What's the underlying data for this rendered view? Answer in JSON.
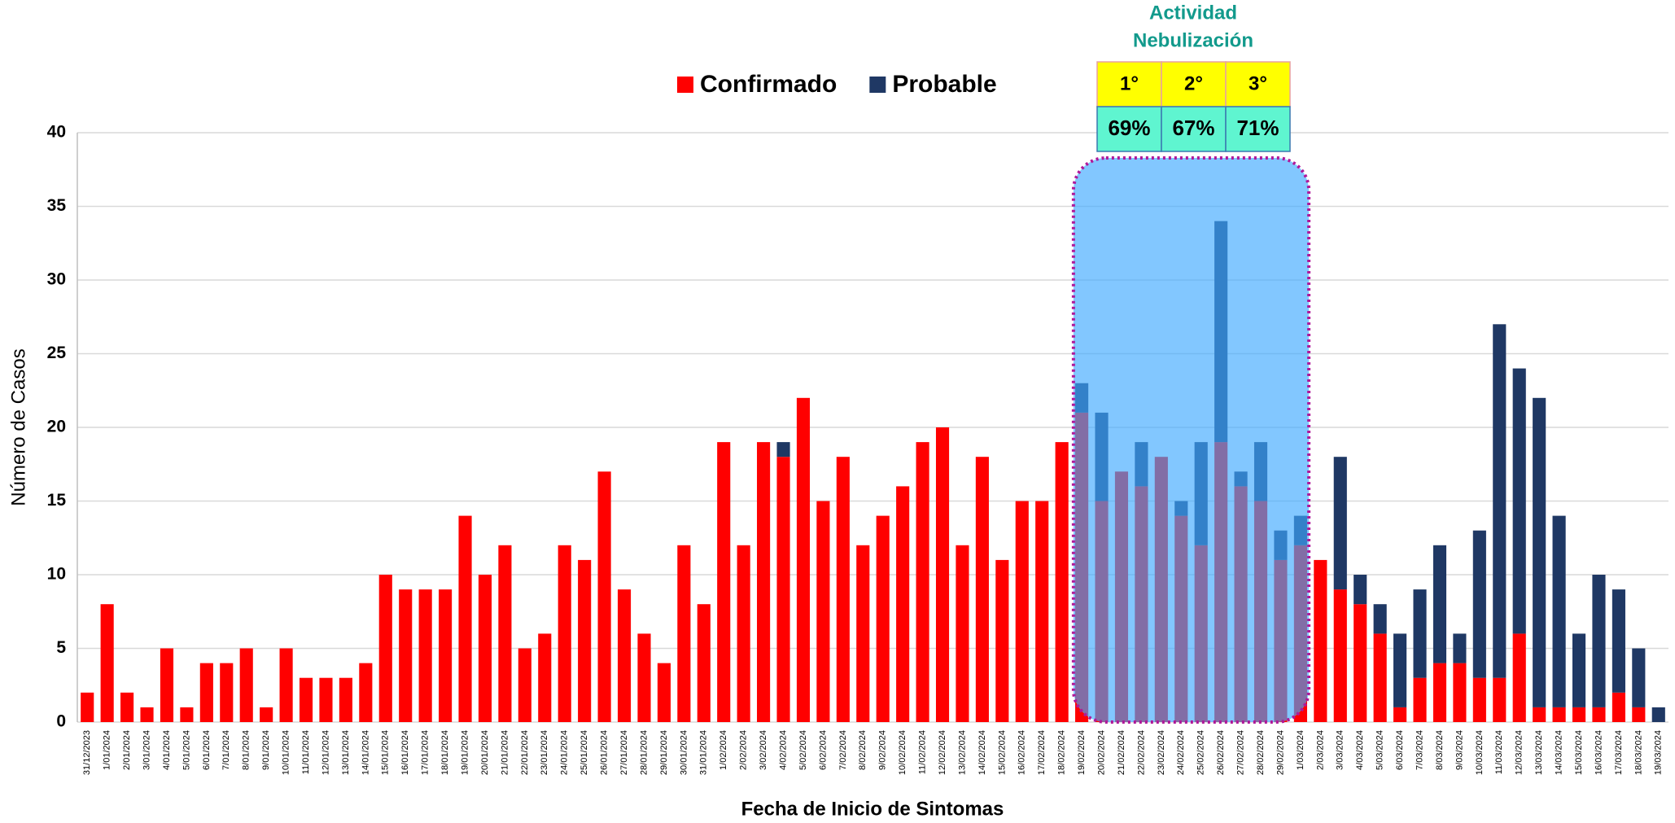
{
  "chart_data": {
    "type": "stacked_bar",
    "x_label": "Fecha de Inicio de Sintomas",
    "y_label": "Número de Casos",
    "categories": [
      "31/12/2023",
      "1/01/2024",
      "2/01/2024",
      "3/01/2024",
      "4/01/2024",
      "5/01/2024",
      "6/01/2024",
      "7/01/2024",
      "8/01/2024",
      "9/01/2024",
      "10/01/2024",
      "11/01/2024",
      "12/01/2024",
      "13/01/2024",
      "14/01/2024",
      "15/01/2024",
      "16/01/2024",
      "17/01/2024",
      "18/01/2024",
      "19/01/2024",
      "20/01/2024",
      "21/01/2024",
      "22/01/2024",
      "23/01/2024",
      "24/01/2024",
      "25/01/2024",
      "26/01/2024",
      "27/01/2024",
      "28/01/2024",
      "29/01/2024",
      "30/01/2024",
      "31/01/2024",
      "1/02/2024",
      "2/02/2024",
      "3/02/2024",
      "4/02/2024",
      "5/02/2024",
      "6/02/2024",
      "7/02/2024",
      "8/02/2024",
      "9/02/2024",
      "10/02/2024",
      "11/02/2024",
      "12/02/2024",
      "13/02/2024",
      "14/02/2024",
      "15/02/2024",
      "16/02/2024",
      "17/02/2024",
      "18/02/2024",
      "19/02/2024",
      "20/02/2024",
      "21/02/2024",
      "22/02/2024",
      "23/02/2024",
      "24/02/2024",
      "25/02/2024",
      "26/02/2024",
      "27/02/2024",
      "28/02/2024",
      "29/02/2024",
      "1/03/2024",
      "2/03/2024",
      "3/03/2024",
      "4/03/2024",
      "5/03/2024",
      "6/03/2024",
      "7/03/2024",
      "8/03/2024",
      "9/03/2024",
      "10/03/2024",
      "11/03/2024",
      "12/03/2024",
      "13/03/2024",
      "14/03/2024",
      "15/03/2024",
      "16/03/2024",
      "17/03/2024",
      "18/03/2024",
      "19/03/2024"
    ],
    "series": [
      {
        "name": "Confirmado",
        "color": "#ff0000",
        "values": [
          2,
          8,
          2,
          1,
          5,
          1,
          4,
          4,
          5,
          1,
          5,
          3,
          3,
          3,
          4,
          10,
          9,
          9,
          9,
          14,
          10,
          12,
          5,
          6,
          12,
          11,
          17,
          9,
          6,
          4,
          12,
          8,
          19,
          12,
          19,
          18,
          22,
          15,
          18,
          12,
          14,
          16,
          19,
          20,
          12,
          18,
          11,
          15,
          15,
          19,
          21,
          15,
          17,
          16,
          18,
          14,
          12,
          19,
          16,
          15,
          11,
          12,
          11,
          9,
          8,
          6,
          1,
          3,
          4,
          4,
          3,
          3,
          6,
          1,
          1,
          1,
          1,
          2,
          1,
          0
        ]
      },
      {
        "name": "Probable",
        "color": "#1f3864",
        "values": [
          0,
          0,
          0,
          0,
          0,
          0,
          0,
          0,
          0,
          0,
          0,
          0,
          0,
          0,
          0,
          0,
          0,
          0,
          0,
          0,
          0,
          0,
          0,
          0,
          0,
          0,
          0,
          0,
          0,
          0,
          0,
          0,
          0,
          0,
          0,
          1,
          0,
          0,
          0,
          0,
          0,
          0,
          0,
          0,
          0,
          0,
          0,
          0,
          0,
          0,
          2,
          6,
          0,
          3,
          0,
          1,
          7,
          15,
          1,
          4,
          2,
          2,
          0,
          9,
          2,
          2,
          5,
          6,
          8,
          2,
          10,
          24,
          18,
          21,
          13,
          5,
          9,
          7,
          4,
          1
        ]
      }
    ],
    "ylim": [
      0,
      40
    ],
    "yticks": [
      0,
      5,
      10,
      15,
      20,
      25,
      30,
      35,
      40
    ],
    "grid": true,
    "highlight": {
      "title": [
        "Actividad",
        "Nebulización"
      ],
      "from": 50,
      "to": 61,
      "headers": [
        "1°",
        "2°",
        "3°"
      ],
      "cells": [
        "69%",
        "67%",
        "71%"
      ]
    }
  }
}
